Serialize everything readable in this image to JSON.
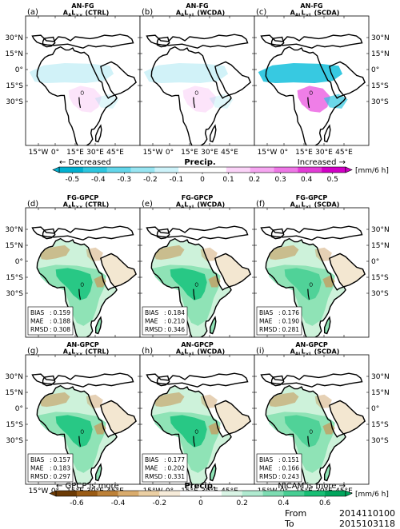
{
  "panels": [
    {
      "letter": "(a)",
      "title": "AN-FG",
      "sub": "A",
      "s1": "A",
      "L": "L",
      "s2": "××",
      "tag": " (CTRL)",
      "kind": "diff"
    },
    {
      "letter": "(b)",
      "title": "AN-FG",
      "sub": "A",
      "s1": "A",
      "L": "L",
      "s2": "×L",
      "tag": " (WCDA)",
      "kind": "diff"
    },
    {
      "letter": "(c)",
      "title": "AN-FG",
      "sub": "A",
      "s1": "AL",
      "L": "L",
      "s2": "×L",
      "tag": " (SCDA)",
      "kind": "diff"
    },
    {
      "letter": "(d)",
      "title": "FG-GPCP",
      "sub": "A",
      "s1": "A",
      "L": "L",
      "s2": "××",
      "tag": " (CTRL)",
      "kind": "bias",
      "stats": [
        [
          "BIAS",
          "0.159"
        ],
        [
          "MAE",
          "0.188"
        ],
        [
          "RMSD",
          "0.308"
        ]
      ]
    },
    {
      "letter": "(e)",
      "title": "FG-GPCP",
      "sub": "A",
      "s1": "A",
      "L": "L",
      "s2": "×L",
      "tag": " (WCDA)",
      "kind": "bias",
      "stats": [
        [
          "BIAS",
          "0.184"
        ],
        [
          "MAE",
          "0.210"
        ],
        [
          "RMSD",
          "0.346"
        ]
      ]
    },
    {
      "letter": "(f)",
      "title": "FG-GPCP",
      "sub": "A",
      "s1": "AL",
      "L": "L",
      "s2": "×L",
      "tag": " (SCDA)",
      "kind": "bias",
      "stats": [
        [
          "BIAS",
          "0.176"
        ],
        [
          "MAE",
          "0.190"
        ],
        [
          "RMSD",
          "0.281"
        ]
      ]
    },
    {
      "letter": "(g)",
      "title": "AN-GPCP",
      "sub": "A",
      "s1": "A",
      "L": "L",
      "s2": "××",
      "tag": " (CTRL)",
      "kind": "bias",
      "stats": [
        [
          "BIAS",
          "0.157"
        ],
        [
          "MAE",
          "0.183"
        ],
        [
          "RMSD",
          "0.297"
        ]
      ]
    },
    {
      "letter": "(h)",
      "title": "AN-GPCP",
      "sub": "A",
      "s1": "A",
      "L": "L",
      "s2": "×L",
      "tag": " (WCDA)",
      "kind": "bias",
      "stats": [
        [
          "BIAS",
          "0.177"
        ],
        [
          "MAE",
          "0.202"
        ],
        [
          "RMSD",
          "0.331"
        ]
      ]
    },
    {
      "letter": "(i)",
      "title": "AN-GPCP",
      "sub": "A",
      "s1": "AL",
      "L": "L",
      "s2": "×L",
      "tag": " (SCDA)",
      "kind": "bias",
      "stats": [
        [
          "BIAS",
          "0.151"
        ],
        [
          "MAE",
          "0.166"
        ],
        [
          "RMSD",
          "0.243"
        ]
      ]
    }
  ],
  "lat_labels": [
    "30°N",
    "15°N",
    "0°",
    "15°S",
    "30°S"
  ],
  "lon_labels": [
    "15°W",
    "0°",
    "15°E",
    "30°E",
    "45°E"
  ],
  "colorbar1": {
    "left_note": "← Decreased",
    "title": "Precip.",
    "right_note": "Increased →",
    "unit": "[mm/6 h]",
    "ticks": [
      "-0.5",
      "-0.4",
      "-0.3",
      "-0.2",
      "-0.1",
      "0",
      "0.1",
      "0.2",
      "0.3",
      "0.4",
      "0.5"
    ],
    "colors": [
      "#00b0d0",
      "#2cc6df",
      "#63d6ea",
      "#98e5f2",
      "#cdf3fa",
      "#ffffff",
      "#ffffff",
      "#fbd3f8",
      "#f6a6f1",
      "#ee77e6",
      "#e23cd6",
      "#d100c6"
    ]
  },
  "colorbar2": {
    "left_note": "← GPCP is more",
    "title": "Precip.",
    "right_note": "NICAM is more →",
    "unit": "[mm/6 h]",
    "ticks": [
      "-0.6",
      "-0.4",
      "-0.2",
      "0",
      "0.2",
      "0.4",
      "0.6"
    ],
    "colors": [
      "#6b3a05",
      "#9a5b14",
      "#bd8138",
      "#d9ab6c",
      "#ebcfa3",
      "#f7ecda",
      "#ffffff",
      "#ffffff",
      "#d9f4e5",
      "#b0ead0",
      "#7ddcb2",
      "#47ce93",
      "#17bf74",
      "#00a55c"
    ]
  },
  "period": {
    "from_label": "From",
    "from_value": "2014110100",
    "to_label": "To",
    "to_value": "2015103118"
  },
  "style": {
    "land_green": "#cdf2da",
    "green_mid": "#8fe3b6",
    "green_strong": "#1dc47f",
    "brown": "#c79a5c",
    "diff_pink": "#ee77e6",
    "diff_cyan": "#2cc6df"
  }
}
